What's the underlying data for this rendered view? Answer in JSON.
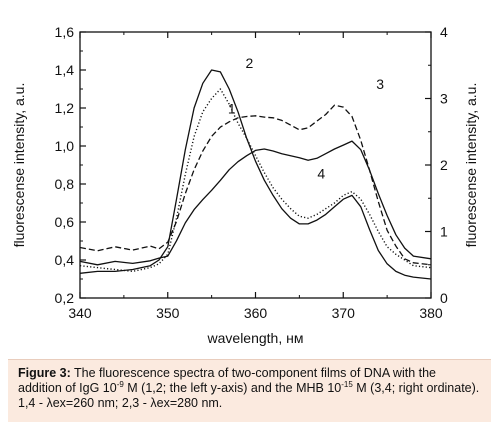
{
  "chart_data": {
    "type": "line",
    "xlabel": "wavelength, нм",
    "ylabel_left": "fluorescense intensity, a.u.",
    "ylabel_right": "fluorescense intensity, a.u.",
    "xlim": [
      340,
      380
    ],
    "ylim_left": [
      0.2,
      1.6
    ],
    "ylim_right": [
      0,
      4
    ],
    "x_ticks": [
      "340",
      "350",
      "360",
      "370",
      "380"
    ],
    "y_left_ticks": [
      "0,2",
      "0,4",
      "0,6",
      "0,8",
      "1,0",
      "1,2",
      "1,4",
      "1,6"
    ],
    "y_right_ticks": [
      "0",
      "1",
      "2",
      "3",
      "4"
    ],
    "series": [
      {
        "name": "1",
        "axis": "left",
        "style": "dotted",
        "x": [
          340,
          342,
          344,
          346,
          348,
          349,
          350,
          351,
          352,
          353,
          354,
          355,
          356,
          357,
          358,
          359,
          360,
          361,
          362,
          363,
          364,
          365,
          366,
          367,
          368,
          369,
          370,
          371,
          372,
          373,
          374,
          375,
          376,
          377,
          378,
          380
        ],
        "y": [
          0.37,
          0.36,
          0.35,
          0.34,
          0.36,
          0.38,
          0.43,
          0.62,
          0.85,
          1.05,
          1.18,
          1.25,
          1.3,
          1.22,
          1.12,
          1.04,
          0.95,
          0.86,
          0.78,
          0.72,
          0.67,
          0.63,
          0.62,
          0.64,
          0.67,
          0.7,
          0.74,
          0.76,
          0.72,
          0.64,
          0.55,
          0.47,
          0.43,
          0.4,
          0.37,
          0.36
        ]
      },
      {
        "name": "2",
        "axis": "left",
        "style": "solid",
        "x": [
          340,
          342,
          344,
          346,
          348,
          349,
          350,
          351,
          352,
          353,
          354,
          355,
          356,
          357,
          358,
          359,
          360,
          361,
          362,
          363,
          364,
          365,
          366,
          367,
          368,
          369,
          370,
          371,
          372,
          373,
          374,
          375,
          376,
          377,
          378,
          380
        ],
        "y": [
          0.33,
          0.34,
          0.34,
          0.35,
          0.37,
          0.4,
          0.47,
          0.72,
          0.98,
          1.2,
          1.33,
          1.4,
          1.39,
          1.3,
          1.18,
          1.04,
          0.92,
          0.82,
          0.74,
          0.67,
          0.62,
          0.59,
          0.59,
          0.61,
          0.64,
          0.68,
          0.72,
          0.74,
          0.68,
          0.56,
          0.45,
          0.38,
          0.34,
          0.32,
          0.31,
          0.3
        ]
      },
      {
        "name": "3",
        "axis": "right",
        "style": "dashed",
        "x": [
          340,
          342,
          344,
          346,
          348,
          349,
          350,
          351,
          352,
          353,
          354,
          355,
          356,
          357,
          358,
          359,
          360,
          361,
          362,
          363,
          364,
          365,
          366,
          367,
          368,
          369,
          370,
          371,
          372,
          373,
          374,
          375,
          376,
          377,
          378,
          380
        ],
        "y": [
          0.76,
          0.71,
          0.77,
          0.72,
          0.78,
          0.74,
          0.84,
          1.15,
          1.57,
          1.93,
          2.21,
          2.43,
          2.57,
          2.65,
          2.71,
          2.73,
          2.74,
          2.72,
          2.71,
          2.67,
          2.6,
          2.53,
          2.56,
          2.66,
          2.76,
          2.9,
          2.87,
          2.73,
          2.37,
          1.92,
          1.45,
          1.02,
          0.78,
          0.59,
          0.53,
          0.5
        ]
      },
      {
        "name": "4",
        "axis": "right",
        "style": "solid",
        "x": [
          340,
          342,
          344,
          346,
          348,
          349,
          350,
          351,
          352,
          353,
          354,
          355,
          356,
          357,
          358,
          359,
          360,
          361,
          362,
          363,
          364,
          365,
          366,
          367,
          368,
          369,
          370,
          371,
          372,
          373,
          374,
          375,
          376,
          377,
          378,
          380
        ],
        "y": [
          0.55,
          0.5,
          0.55,
          0.52,
          0.56,
          0.6,
          0.63,
          0.86,
          1.13,
          1.33,
          1.48,
          1.62,
          1.77,
          1.93,
          2.05,
          2.14,
          2.22,
          2.24,
          2.21,
          2.17,
          2.14,
          2.11,
          2.07,
          2.1,
          2.17,
          2.24,
          2.3,
          2.36,
          2.23,
          1.92,
          1.57,
          1.24,
          0.95,
          0.75,
          0.63,
          0.59
        ]
      }
    ],
    "curve_labels": [
      {
        "text": "1",
        "x": 357.3,
        "y": 1.17
      },
      {
        "text": "2",
        "x": 359.3,
        "y": 1.41
      },
      {
        "text": "3",
        "x": 374.2,
        "y": 1.3
      },
      {
        "text": "4",
        "x": 367.5,
        "y": 0.83
      }
    ]
  },
  "caption": {
    "label": "Figure 3:",
    "text_1": " The fluorescence spectra of two-component films of DNA with the addition of IgG 10",
    "exp_1": "-9",
    "text_2": " M (1,2; the left y-axis) and the MHB 10",
    "exp_2": "-15",
    "text_3": " M (3,4; right ordinate). 1,4 - λex=260 nm; 2,3 - λex=280 nm."
  }
}
